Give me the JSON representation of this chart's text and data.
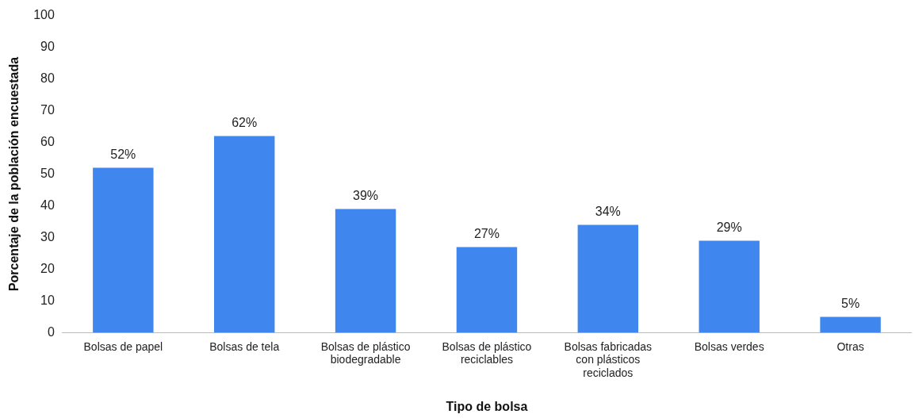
{
  "chart_data": {
    "type": "bar",
    "xlabel": "Tipo de bolsa",
    "ylabel": "Porcentaje de la población encuestada",
    "categories": [
      "Bolsas de papel",
      "Bolsas de tela",
      "Bolsas de plástico biodegradable",
      "Bolsas de plástico reciclables",
      "Bolsas fabricadas con plásticos reciclados",
      "Bolsas verdes",
      "Otras"
    ],
    "values": [
      52,
      62,
      39,
      27,
      34,
      29,
      5
    ],
    "value_labels": [
      "52%",
      "62%",
      "39%",
      "27%",
      "34%",
      "29%",
      "5%"
    ],
    "color": "#3f86ee",
    "ylim": [
      0,
      100
    ],
    "yticks": [
      0,
      10,
      20,
      30,
      40,
      50,
      60,
      70,
      80,
      90,
      100
    ],
    "grid": false,
    "legend": false
  }
}
